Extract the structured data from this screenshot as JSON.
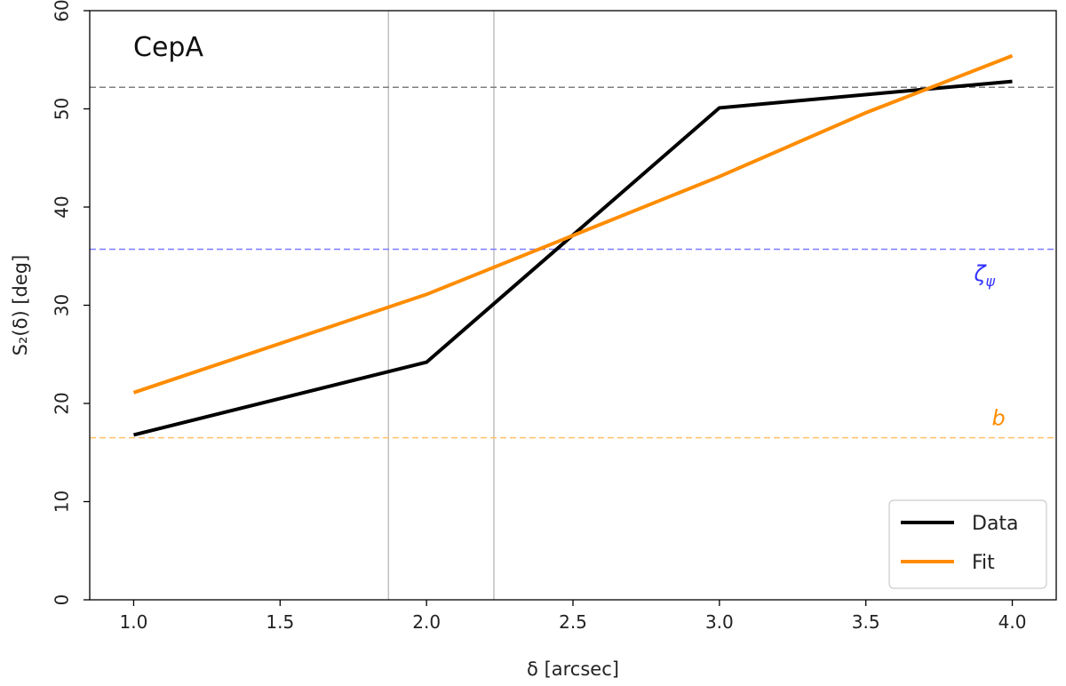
{
  "chart_data": {
    "type": "line",
    "plot_label": "CepA",
    "xlabel": "δ [arcsec]",
    "ylabel": "S₂(δ) [deg]",
    "xlim": [
      0.85,
      4.15
    ],
    "ylim": [
      0,
      60
    ],
    "x_ticks": [
      1.0,
      1.5,
      2.0,
      2.5,
      3.0,
      3.5,
      4.0
    ],
    "x_tick_labels": [
      "1.0",
      "1.5",
      "2.0",
      "2.5",
      "3.0",
      "3.5",
      "4.0"
    ],
    "y_ticks": [
      0,
      10,
      20,
      30,
      40,
      50,
      60
    ],
    "y_tick_labels": [
      "0",
      "10",
      "20",
      "30",
      "40",
      "50",
      "60"
    ],
    "grid": false,
    "legend_position": "bottom-right",
    "series": [
      {
        "name": "Data",
        "color": "#000000",
        "x": [
          1.0,
          2.0,
          3.0,
          4.0
        ],
        "y": [
          16.8,
          24.2,
          50.1,
          52.8
        ]
      },
      {
        "name": "Fit",
        "color": "#ff8c00",
        "x": [
          1.0,
          2.0,
          2.5,
          3.0,
          3.5,
          4.0
        ],
        "y": [
          21.1,
          31.1,
          37.1,
          43.1,
          49.6,
          55.4
        ]
      }
    ],
    "hlines": [
      {
        "y": 52.2,
        "color": "#7f7f7f",
        "label": ""
      },
      {
        "y": 35.7,
        "color": "#7b7bff",
        "label": "ζ",
        "label_sub": "ψ",
        "label_x": 3.93,
        "label_y": 32.5
      },
      {
        "y": 16.5,
        "color": "#ffc266",
        "label": "b",
        "label_x": 3.93,
        "label_y": 17.8
      }
    ],
    "vlines": [
      {
        "x": 1.87,
        "color": "#bfbfbf"
      },
      {
        "x": 2.23,
        "color": "#bfbfbf"
      }
    ]
  }
}
